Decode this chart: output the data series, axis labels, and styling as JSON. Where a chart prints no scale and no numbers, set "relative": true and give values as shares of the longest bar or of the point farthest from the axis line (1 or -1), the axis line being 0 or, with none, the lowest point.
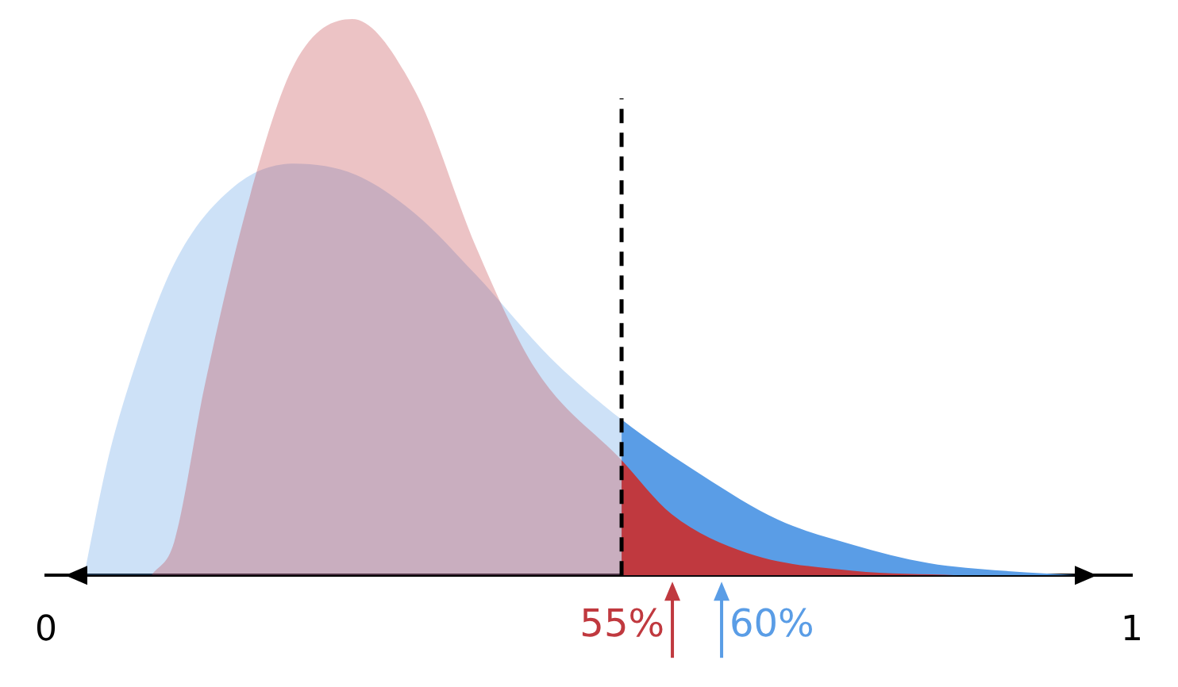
{
  "chart_data": {
    "type": "area",
    "relative": true,
    "xlim": [
      0,
      1
    ],
    "xticks": [
      0,
      1
    ],
    "grid": false,
    "legend": false,
    "series": [
      {
        "color": "#c0393f",
        "x": [
          0.097,
          0.118,
          0.146,
          0.1875,
          0.229,
          0.282,
          0.34,
          0.396,
          0.451,
          0.53,
          0.576,
          0.646,
          0.743,
          0.84
        ],
        "values": [
          0,
          0.06,
          0.34,
          0.68,
          0.92,
          1,
          0.87,
          0.59,
          0.37,
          0.207,
          0.11,
          0.04,
          0.008,
          0
        ]
      },
      {
        "color": "#5a9de6",
        "x": [
          0.035,
          0.056,
          0.076,
          0.118,
          0.174,
          0.229,
          0.285,
          0.34,
          0.396,
          0.465,
          0.53,
          0.604,
          0.674,
          0.743,
          0.8125,
          0.882,
          0.951
        ],
        "values": [
          0,
          0.2,
          0.34,
          0.56,
          0.7,
          0.74,
          0.72,
          0.65,
          0.54,
          0.39,
          0.28,
          0.18,
          0.1,
          0.055,
          0.022,
          0.008,
          0
        ]
      }
    ],
    "ref_lines": [
      {
        "axis": "x",
        "value": 0.53,
        "line_style": "dashed",
        "color": "#000000"
      }
    ],
    "annotations": [
      "55%",
      "60%"
    ]
  }
}
